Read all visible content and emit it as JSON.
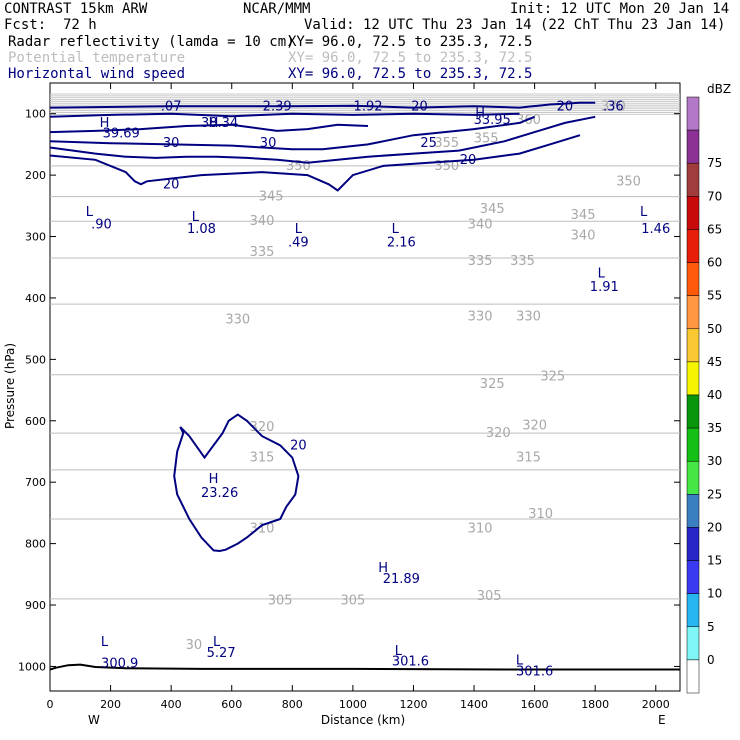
{
  "header": {
    "title": "CONTRAST 15km ARW",
    "center": "NCAR/MMM",
    "init": "Init: 12 UTC Mon 20 Jan 14",
    "fcst_label": "Fcst:",
    "fcst_value": "72 h",
    "valid": "Valid: 12 UTC Thu 23 Jan 14 (22 ChT Thu 23 Jan 14)"
  },
  "fields": [
    {
      "name": "Radar reflectivity (lamda = 10 cm)",
      "xy": "XY=  96.0, 72.5 to 235.3, 72.5",
      "color": "#000000"
    },
    {
      "name": "Potential temperature",
      "xy": "XY=  96.0, 72.5 to 235.3, 72.5",
      "color": "#bdbdbd"
    },
    {
      "name": "Horizontal wind speed",
      "xy": "XY=  96.0, 72.5 to 235.3, 72.5",
      "color": "#000080"
    }
  ],
  "colorbar": {
    "unit": "dBZ",
    "levels": [
      "0",
      "5",
      "10",
      "15",
      "20",
      "25",
      "30",
      "35",
      "40",
      "45",
      "50",
      "55",
      "60",
      "65",
      "70",
      "75"
    ],
    "colors": [
      "#ffffff",
      "#7ff5f5",
      "#27b4ef",
      "#3a3af0",
      "#2727c8",
      "#3a7fc0",
      "#45e645",
      "#14c014",
      "#0a960a",
      "#f5f500",
      "#fac832",
      "#ff9640",
      "#ff5a0a",
      "#e61e0a",
      "#c80a0a",
      "#a03c3c",
      "#8c3296",
      "#b478c8"
    ]
  },
  "chart_data": {
    "type": "contour",
    "title": "",
    "xlabel": "Distance (km)",
    "ylabel": "Pressure (hPa)",
    "x_ticks": [
      "0",
      "200",
      "400",
      "600",
      "800",
      "1000",
      "1200",
      "1400",
      "1600",
      "1800",
      "2000"
    ],
    "y_ticks": [
      "100",
      "200",
      "300",
      "400",
      "500",
      "600",
      "700",
      "800",
      "900",
      "1000"
    ],
    "xlim": [
      0,
      2080
    ],
    "ylim": [
      1040,
      50
    ],
    "x_end_labels": {
      "left": "W",
      "right": "E"
    },
    "theta_levels": [
      {
        "value": "350",
        "x": [
          0,
          2080
        ],
        "p": [
          185,
          185
        ]
      },
      {
        "value": "345",
        "x": [
          0,
          2080
        ],
        "p": [
          235,
          235
        ]
      },
      {
        "value": "340",
        "x": [
          0,
          2080
        ],
        "p": [
          275,
          275
        ]
      },
      {
        "value": "335",
        "x": [
          0,
          2080
        ],
        "p": [
          335,
          335
        ]
      },
      {
        "value": "330",
        "x": [
          0,
          2080
        ],
        "p": [
          410,
          410
        ]
      },
      {
        "value": "325",
        "x": [
          0,
          2080
        ],
        "p": [
          525,
          525
        ]
      },
      {
        "value": "320",
        "x": [
          0,
          2080
        ],
        "p": [
          620,
          620
        ]
      },
      {
        "value": "315",
        "x": [
          0,
          2080
        ],
        "p": [
          680,
          680
        ]
      },
      {
        "value": "310",
        "x": [
          0,
          2080
        ],
        "p": [
          760,
          760
        ]
      },
      {
        "value": "305",
        "x": [
          0,
          2080
        ],
        "p": [
          890,
          890
        ]
      }
    ],
    "theta_labels": [
      {
        "text": "350",
        "x": 820,
        "p": 185
      },
      {
        "text": "350",
        "x": 1310,
        "p": 185
      },
      {
        "text": "350",
        "x": 1910,
        "p": 210
      },
      {
        "text": "345",
        "x": 730,
        "p": 235
      },
      {
        "text": "345",
        "x": 1460,
        "p": 255
      },
      {
        "text": "345",
        "x": 1760,
        "p": 265
      },
      {
        "text": "340",
        "x": 700,
        "p": 275
      },
      {
        "text": "340",
        "x": 1420,
        "p": 280
      },
      {
        "text": "340",
        "x": 1760,
        "p": 298
      },
      {
        "text": "335",
        "x": 700,
        "p": 325
      },
      {
        "text": "335",
        "x": 1420,
        "p": 340
      },
      {
        "text": "335",
        "x": 1560,
        "p": 340
      },
      {
        "text": "330",
        "x": 620,
        "p": 435
      },
      {
        "text": "330",
        "x": 1420,
        "p": 430
      },
      {
        "text": "330",
        "x": 1580,
        "p": 430
      },
      {
        "text": "325",
        "x": 1460,
        "p": 540
      },
      {
        "text": "325",
        "x": 1660,
        "p": 528
      },
      {
        "text": "320",
        "x": 700,
        "p": 610
      },
      {
        "text": "320",
        "x": 1480,
        "p": 620
      },
      {
        "text": "320",
        "x": 1600,
        "p": 608
      },
      {
        "text": "315",
        "x": 700,
        "p": 660
      },
      {
        "text": "315",
        "x": 1580,
        "p": 660
      },
      {
        "text": "310",
        "x": 700,
        "p": 775
      },
      {
        "text": "310",
        "x": 1420,
        "p": 775
      },
      {
        "text": "310",
        "x": 1620,
        "p": 752
      },
      {
        "text": "305",
        "x": 760,
        "p": 893
      },
      {
        "text": "305",
        "x": 1000,
        "p": 893
      },
      {
        "text": "305",
        "x": 1450,
        "p": 885
      },
      {
        "text": "355",
        "x": 1310,
        "p": 148
      },
      {
        "text": "355",
        "x": 1440,
        "p": 140
      },
      {
        "text": "360",
        "x": 1580,
        "p": 110
      },
      {
        "text": "370",
        "x": 1860,
        "p": 88
      },
      {
        "text": "30",
        "x": 475,
        "p": 965
      }
    ],
    "wind_contours": [
      {
        "level": "20",
        "x": [
          0,
          400,
          800,
          1000,
          1200,
          1400,
          1550,
          1650,
          1750,
          1800
        ],
        "p": [
          90,
          88,
          88,
          87,
          90,
          88,
          90,
          85,
          82,
          82
        ]
      },
      {
        "level": "30",
        "x": [
          0,
          200,
          400,
          600,
          800,
          1000,
          1200,
          1400,
          1550
        ],
        "p": [
          105,
          102,
          100,
          104,
          100,
          102,
          100,
          102,
          100
        ]
      },
      {
        "level": "30",
        "x": [
          0,
          150,
          300,
          450,
          600,
          750,
          850,
          950,
          1050
        ],
        "p": [
          130,
          128,
          125,
          120,
          118,
          128,
          125,
          118,
          120
        ]
      },
      {
        "level": "30",
        "x": [
          0,
          200,
          400,
          600,
          800,
          900,
          1050,
          1200,
          1400,
          1550,
          1600
        ],
        "p": [
          145,
          148,
          150,
          152,
          158,
          158,
          150,
          135,
          125,
          115,
          105
        ]
      },
      {
        "level": "20",
        "x": [
          0,
          150,
          250,
          350,
          450,
          550,
          650,
          750,
          850,
          950,
          1050,
          1200,
          1350,
          1500,
          1600,
          1700,
          1800
        ],
        "p": [
          155,
          165,
          170,
          172,
          170,
          170,
          172,
          175,
          180,
          175,
          170,
          165,
          160,
          145,
          130,
          115,
          105
        ]
      },
      {
        "level": "20",
        "x": [
          0,
          150,
          250,
          280,
          300,
          320,
          500,
          700,
          850,
          920,
          950,
          1000,
          1100,
          1250,
          1400,
          1550,
          1650,
          1750
        ],
        "p": [
          168,
          175,
          195,
          210,
          215,
          210,
          200,
          195,
          200,
          215,
          225,
          200,
          185,
          180,
          175,
          165,
          150,
          135
        ]
      },
      {
        "level": "20",
        "x": [
          430,
          460,
          510,
          570,
          590,
          620,
          650,
          700,
          760,
          800,
          820,
          810,
          780,
          760,
          700,
          650,
          620,
          580,
          560,
          540,
          500,
          460,
          440,
          420,
          410,
          420,
          440,
          430
        ],
        "p": [
          610,
          625,
          660,
          620,
          600,
          590,
          600,
          625,
          640,
          660,
          690,
          720,
          740,
          760,
          770,
          790,
          800,
          810,
          812,
          811,
          790,
          760,
          740,
          720,
          690,
          650,
          620,
          610
        ]
      }
    ],
    "labels": [
      {
        "text": "H",
        "x": 180,
        "p": 115
      },
      {
        "text": "39.69",
        "x": 235,
        "p": 132
      },
      {
        "text": "H",
        "x": 540,
        "p": 115
      },
      {
        "text": "38.34",
        "x": 560,
        "p": 115
      },
      {
        "text": "H",
        "x": 1420,
        "p": 100
      },
      {
        "text": "33.95",
        "x": 1460,
        "p": 110
      },
      {
        "text": "H",
        "x": 540,
        "p": 695
      },
      {
        "text": "23.26",
        "x": 560,
        "p": 718
      },
      {
        "text": "H",
        "x": 1100,
        "p": 840
      },
      {
        "text": "21.89",
        "x": 1160,
        "p": 858
      },
      {
        "text": "L",
        "x": 130,
        "p": 260
      },
      {
        "text": ".90",
        "x": 170,
        "p": 280
      },
      {
        "text": "L",
        "x": 480,
        "p": 268
      },
      {
        "text": "1.08",
        "x": 500,
        "p": 288
      },
      {
        "text": "L",
        "x": 820,
        "p": 288
      },
      {
        "text": ".49",
        "x": 820,
        "p": 310
      },
      {
        "text": "L",
        "x": 1140,
        "p": 288
      },
      {
        "text": "2.16",
        "x": 1160,
        "p": 310
      },
      {
        "text": "L",
        "x": 1960,
        "p": 260
      },
      {
        "text": "1.46",
        "x": 2000,
        "p": 288
      },
      {
        "text": "L",
        "x": 1820,
        "p": 360
      },
      {
        "text": "1.91",
        "x": 1830,
        "p": 382
      },
      {
        "text": "L",
        "x": 550,
        "p": 960
      },
      {
        "text": "5.27",
        "x": 565,
        "p": 978
      },
      {
        "text": "L",
        "x": 180,
        "p": 960
      },
      {
        "text": "300.9",
        "x": 230,
        "p": 995
      },
      {
        "text": "L",
        "x": 1150,
        "p": 975
      },
      {
        "text": "301.6",
        "x": 1190,
        "p": 992
      },
      {
        "text": "L",
        "x": 1550,
        "p": 990
      },
      {
        "text": "301.6",
        "x": 1600,
        "p": 1008
      },
      {
        "text": ".07",
        "x": 400,
        "p": 88
      },
      {
        "text": "2.39",
        "x": 750,
        "p": 88
      },
      {
        "text": "1.92",
        "x": 1050,
        "p": 88
      },
      {
        "text": "20",
        "x": 1220,
        "p": 88
      },
      {
        "text": "20",
        "x": 1700,
        "p": 88
      },
      {
        "text": ".36",
        "x": 1860,
        "p": 88
      },
      {
        "text": "30",
        "x": 400,
        "p": 148
      },
      {
        "text": "30",
        "x": 720,
        "p": 148
      },
      {
        "text": "25",
        "x": 1250,
        "p": 148
      },
      {
        "text": "20",
        "x": 400,
        "p": 215
      },
      {
        "text": "20",
        "x": 1380,
        "p": 175
      },
      {
        "text": "20",
        "x": 820,
        "p": 640
      }
    ],
    "surface": {
      "x": [
        0,
        20,
        60,
        100,
        150,
        250,
        500,
        1000,
        1500,
        2000,
        2080
      ],
      "p": [
        1005,
        1002,
        998,
        997,
        1001,
        1003,
        1004,
        1004,
        1005,
        1005,
        1005
      ]
    }
  }
}
